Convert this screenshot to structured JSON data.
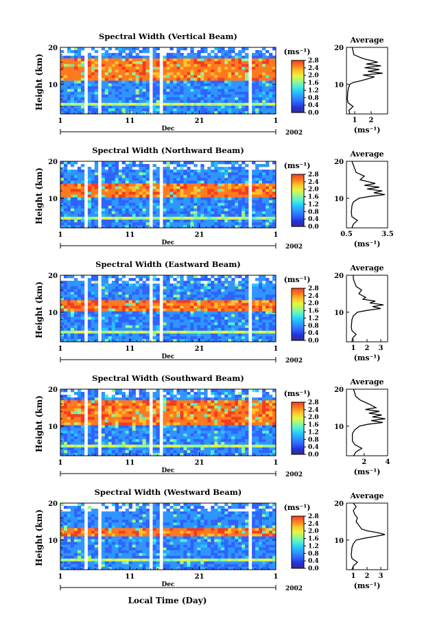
{
  "figure": {
    "xlabel": "Local Time (Day)",
    "month": "Dec",
    "year": "2002",
    "colorbar_unit": "(ms⁻¹)",
    "avg_title": "Average",
    "avg_unit": "(ms⁻¹)",
    "colorscale": [
      "#3b2a8f",
      "#2233d6",
      "#2f63ff",
      "#2f95ff",
      "#25c7ff",
      "#4ef0d8",
      "#9bf78a",
      "#e8f53c",
      "#ffc22b",
      "#ff7a1f",
      "#f63b22"
    ]
  },
  "chart_data": [
    {
      "type": "heatmap",
      "title": "Spectral Width (Vertical Beam)",
      "ylabel": "Height (km)",
      "x_ticks": [
        "1",
        "11",
        "21",
        "1"
      ],
      "y_ticks": [
        "20",
        "10"
      ],
      "ylim": [
        2,
        20
      ],
      "colorbar_ticks": [
        "2.8",
        "2.4",
        "2.0",
        "1.6",
        "1.2",
        "0.8",
        "0.4",
        "0.0"
      ],
      "colorbar_range": [
        0,
        2.8
      ],
      "data_gaps_days": [
        [
          4.3,
          4.9
        ],
        [
          6.6,
          6.8
        ],
        [
          9.3,
          9.6
        ],
        [
          12.2,
          12.5
        ],
        [
          13.9,
          14.1
        ],
        [
          15.5,
          15.7
        ],
        [
          27.4,
          27.6
        ],
        [
          28.3,
          28.8
        ]
      ],
      "layers": [
        {
          "h0": 11,
          "h1": 17,
          "intensity": 0.9
        }
      ],
      "avg_xticks": [
        "1",
        "2"
      ],
      "avg_xlim": [
        0.5,
        3.0
      ],
      "avg_profile": [
        [
          2,
          0.7
        ],
        [
          3,
          0.65
        ],
        [
          4,
          0.9
        ],
        [
          5,
          0.6
        ],
        [
          6,
          0.55
        ],
        [
          8,
          0.58
        ],
        [
          9,
          0.62
        ],
        [
          10,
          0.7
        ],
        [
          10.5,
          0.9
        ],
        [
          11,
          1.4
        ],
        [
          12,
          2.2
        ],
        [
          12.5,
          1.5
        ],
        [
          13,
          2.7
        ],
        [
          13.5,
          1.8
        ],
        [
          14,
          2.5
        ],
        [
          14.5,
          1.6
        ],
        [
          15,
          2.6
        ],
        [
          15.5,
          1.7
        ],
        [
          16,
          2.4
        ],
        [
          17,
          1.5
        ],
        [
          18,
          0.95
        ],
        [
          19,
          0.9
        ],
        [
          20,
          0.85
        ]
      ]
    },
    {
      "type": "heatmap",
      "title": "Spectral Width (Northward Beam)",
      "ylabel": "Height (km)",
      "x_ticks": [
        "1",
        "11",
        "21",
        "1"
      ],
      "y_ticks": [
        "20",
        "10"
      ],
      "ylim": [
        2,
        20
      ],
      "colorbar_ticks": [
        "2.8",
        "2.4",
        "2.0",
        "1.6",
        "1.2",
        "0.8",
        "0.4",
        "0.0"
      ],
      "colorbar_range": [
        0,
        2.8
      ],
      "data_gaps_days": [
        [
          4.3,
          4.9
        ],
        [
          6.6,
          6.8
        ],
        [
          9.3,
          9.6
        ],
        [
          12.2,
          12.5
        ],
        [
          13.9,
          14.1
        ],
        [
          15.5,
          15.7
        ],
        [
          27.4,
          27.6
        ],
        [
          28.3,
          28.8
        ]
      ],
      "layers": [
        {
          "h0": 10,
          "h1": 14,
          "intensity": 1.0
        }
      ],
      "avg_xticks": [
        "0.5",
        "3.5"
      ],
      "avg_xlim": [
        0.5,
        3.5
      ],
      "avg_profile": [
        [
          2,
          0.9
        ],
        [
          3,
          1.0
        ],
        [
          4,
          1.3
        ],
        [
          5,
          0.9
        ],
        [
          6,
          0.85
        ],
        [
          8,
          0.9
        ],
        [
          9,
          1.0
        ],
        [
          10,
          1.4
        ],
        [
          10.5,
          2.2
        ],
        [
          11,
          3.3
        ],
        [
          11.5,
          2.5
        ],
        [
          12,
          3.1
        ],
        [
          12.5,
          2.0
        ],
        [
          13,
          2.9
        ],
        [
          13.5,
          1.8
        ],
        [
          14,
          2.6
        ],
        [
          15,
          1.5
        ],
        [
          16,
          1.8
        ],
        [
          17,
          1.2
        ],
        [
          18,
          1.1
        ],
        [
          19,
          1.0
        ],
        [
          20,
          0.9
        ]
      ]
    },
    {
      "type": "heatmap",
      "title": "Spectral Width (Eastward Beam)",
      "ylabel": "Height (km)",
      "x_ticks": [
        "1",
        "11",
        "21",
        "1"
      ],
      "y_ticks": [
        "20",
        "10"
      ],
      "ylim": [
        2,
        20
      ],
      "colorbar_ticks": [
        "2.8",
        "2.4",
        "2.0",
        "1.6",
        "1.2",
        "0.8",
        "0.4",
        "0.0"
      ],
      "colorbar_range": [
        0,
        2.8
      ],
      "data_gaps_days": [
        [
          4.3,
          4.9
        ],
        [
          6.6,
          6.8
        ],
        [
          9.3,
          9.6
        ],
        [
          12.2,
          12.5
        ],
        [
          13.9,
          14.1
        ],
        [
          15.5,
          15.7
        ],
        [
          27.4,
          27.6
        ],
        [
          28.3,
          28.8
        ]
      ],
      "layers": [
        {
          "h0": 10.5,
          "h1": 13.5,
          "intensity": 1.0
        }
      ],
      "avg_xticks": [
        "1",
        "2",
        "3"
      ],
      "avg_xlim": [
        0.5,
        3.5
      ],
      "avg_profile": [
        [
          2,
          0.9
        ],
        [
          3,
          0.95
        ],
        [
          4,
          1.2
        ],
        [
          5,
          0.9
        ],
        [
          6,
          0.85
        ],
        [
          8,
          0.9
        ],
        [
          9,
          1.0
        ],
        [
          10,
          1.3
        ],
        [
          10.5,
          2.0
        ],
        [
          11,
          3.0
        ],
        [
          11.5,
          2.4
        ],
        [
          12,
          3.2
        ],
        [
          12.5,
          2.2
        ],
        [
          13,
          2.6
        ],
        [
          13.5,
          1.7
        ],
        [
          14,
          1.9
        ],
        [
          15,
          1.4
        ],
        [
          16,
          1.6
        ],
        [
          17,
          1.2
        ],
        [
          18,
          1.1
        ],
        [
          19,
          1.0
        ],
        [
          20,
          1.0
        ]
      ]
    },
    {
      "type": "heatmap",
      "title": "Spectral Width (Southward Beam)",
      "ylabel": "Height (km)",
      "x_ticks": [
        "1",
        "11",
        "21",
        "1"
      ],
      "y_ticks": [
        "20",
        "10"
      ],
      "ylim": [
        2,
        20
      ],
      "colorbar_ticks": [
        "2.8",
        "2.4",
        "2.0",
        "1.6",
        "1.2",
        "0.8",
        "0.4",
        "0.0"
      ],
      "colorbar_range": [
        0,
        2.8
      ],
      "data_gaps_days": [
        [
          4.3,
          4.9
        ],
        [
          6.6,
          6.8
        ],
        [
          9.3,
          9.6
        ],
        [
          12.2,
          12.5
        ],
        [
          13.9,
          14.1
        ],
        [
          15.5,
          15.7
        ],
        [
          27.4,
          27.6
        ],
        [
          28.3,
          28.8
        ]
      ],
      "layers": [
        {
          "h0": 10.5,
          "h1": 17,
          "intensity": 1.0
        }
      ],
      "avg_xticks": [
        "2",
        "4"
      ],
      "avg_xlim": [
        0.5,
        4.0
      ],
      "avg_profile": [
        [
          2,
          1.1
        ],
        [
          3,
          1.3
        ],
        [
          4,
          1.8
        ],
        [
          5,
          1.2
        ],
        [
          6,
          1.0
        ],
        [
          8,
          1.0
        ],
        [
          9,
          1.2
        ],
        [
          10,
          1.6
        ],
        [
          10.5,
          2.3
        ],
        [
          11,
          3.6
        ],
        [
          11.5,
          2.6
        ],
        [
          12,
          3.8
        ],
        [
          12.5,
          2.7
        ],
        [
          13,
          3.5
        ],
        [
          13.5,
          2.4
        ],
        [
          14,
          3.3
        ],
        [
          14.5,
          2.1
        ],
        [
          15,
          3.0
        ],
        [
          16,
          2.4
        ],
        [
          17,
          1.7
        ],
        [
          18,
          1.3
        ],
        [
          19,
          1.2
        ],
        [
          20,
          1.1
        ]
      ]
    },
    {
      "type": "heatmap",
      "title": "Spectral Width (Westward Beam)",
      "ylabel": "Height (km)",
      "x_ticks": [
        "1",
        "11",
        "21",
        "1"
      ],
      "y_ticks": [
        "20",
        "10"
      ],
      "ylim": [
        2,
        20
      ],
      "colorbar_ticks": [
        "2.8",
        "2.4",
        "2.0",
        "1.6",
        "1.2",
        "0.8",
        "0.4",
        "0.0"
      ],
      "colorbar_range": [
        0,
        2.8
      ],
      "data_gaps_days": [
        [
          4.3,
          4.9
        ],
        [
          6.6,
          6.8
        ],
        [
          9.3,
          9.6
        ],
        [
          12.2,
          12.5
        ],
        [
          13.9,
          14.1
        ],
        [
          15.5,
          15.7
        ],
        [
          27.4,
          27.6
        ],
        [
          28.3,
          28.8
        ]
      ],
      "layers": [
        {
          "h0": 11,
          "h1": 13,
          "intensity": 1.0
        }
      ],
      "avg_xticks": [
        "1",
        "2",
        "3"
      ],
      "avg_xlim": [
        0.5,
        3.5
      ],
      "avg_profile": [
        [
          2,
          0.9
        ],
        [
          3,
          1.0
        ],
        [
          4,
          1.3
        ],
        [
          5,
          0.9
        ],
        [
          6,
          0.85
        ],
        [
          8,
          0.9
        ],
        [
          9,
          1.0
        ],
        [
          10,
          1.2
        ],
        [
          10.5,
          1.8
        ],
        [
          11,
          2.6
        ],
        [
          11.5,
          3.3
        ],
        [
          12,
          2.8
        ],
        [
          12.5,
          2.0
        ],
        [
          13,
          1.6
        ],
        [
          14,
          1.4
        ],
        [
          15,
          1.2
        ],
        [
          16,
          1.3
        ],
        [
          17,
          1.1
        ],
        [
          18,
          1.0
        ],
        [
          19,
          1.2
        ],
        [
          20,
          1.0
        ]
      ]
    }
  ]
}
